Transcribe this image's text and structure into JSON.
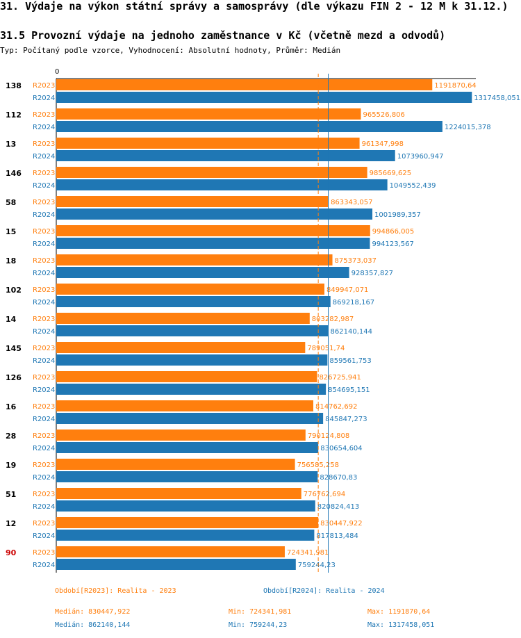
{
  "header": {
    "title": "31. Výdaje na výkon státní správy a samosprávy (dle výkazu FIN 2 - 12 M k 31.12.)",
    "subtitle": "31.5 Provozní výdaje na jednoho zaměstnance v Kč (včetně mezd a odvodů)",
    "meta": "Typ: Počítaný podle vzorce, Vyhodnocení: Absolutní hodnoty, Průměr: Medián"
  },
  "colors": {
    "r2023": "#ff7f0e",
    "r2024": "#1f77b4",
    "highlight": "#cc0000"
  },
  "chart_data": {
    "type": "bar",
    "orientation": "horizontal",
    "axis_zero_label": "0",
    "xlim": [
      0,
      1330000
    ],
    "highlight_category": "90",
    "categories": [
      "138",
      "112",
      "13",
      "146",
      "58",
      "15",
      "18",
      "102",
      "14",
      "145",
      "126",
      "16",
      "28",
      "19",
      "51",
      "12",
      "90"
    ],
    "series": [
      {
        "name": "R2023",
        "values": [
          1191870.64,
          965526.806,
          961347.998,
          985669.625,
          863343.057,
          994866.005,
          875373.037,
          849947.071,
          803282.987,
          789051.74,
          826725.941,
          814762.692,
          790124.808,
          756585.258,
          776762.694,
          830447.922,
          724341.981
        ],
        "labels": [
          "1191870,64",
          "965526,806",
          "961347,998",
          "985669,625",
          "863343,057",
          "994866,005",
          "875373,037",
          "849947,071",
          "803282,987",
          "789051,74",
          "826725,941",
          "814762,692",
          "790124,808",
          "756585,258",
          "776762,694",
          "830447,922",
          "724341,981"
        ],
        "median": 830447.922
      },
      {
        "name": "R2024",
        "values": [
          1317458.051,
          1224015.378,
          1073960.947,
          1049552.439,
          1001989.357,
          994123.567,
          928357.827,
          869218.167,
          862140.144,
          859561.753,
          854695.151,
          845847.273,
          830654.604,
          828670.83,
          820824.413,
          817813.484,
          759244.23
        ],
        "labels": [
          "1317458,051",
          "1224015,378",
          "1073960,947",
          "1049552,439",
          "1001989,357",
          "994123,567",
          "928357,827",
          "869218,167",
          "862140,144",
          "859561,753",
          "854695,151",
          "845847,273",
          "830654,604",
          "828670,83",
          "820824,413",
          "817813,484",
          "759244,23"
        ],
        "median": 862140.144
      }
    ]
  },
  "legend": {
    "r2023": "Období[R2023]: Realita - 2023",
    "r2024": "Období[R2024]: Realita - 2024"
  },
  "stats": {
    "r2023": {
      "median": "Medián: 830447,922",
      "min": "Min: 724341,981",
      "max": "Max: 1191870,64"
    },
    "r2024": {
      "median": "Medián: 862140,144",
      "min": "Min: 759244,23",
      "max": "Max: 1317458,051"
    }
  }
}
